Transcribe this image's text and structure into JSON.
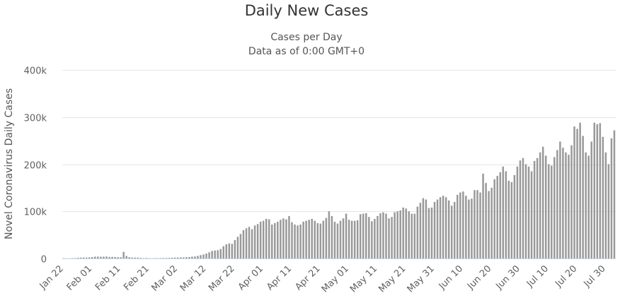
{
  "chart_data": {
    "type": "bar",
    "title": "Daily New Cases",
    "subtitle": [
      "Cases per Day",
      "Data as of 0:00 GMT+0"
    ],
    "xlabel": "",
    "ylabel": "Novel Coronavirus Daily Cases",
    "ylim": [
      0,
      400000
    ],
    "yticks": [
      0,
      100000,
      200000,
      300000,
      400000
    ],
    "ytick_labels": [
      "0",
      "100k",
      "200k",
      "300k",
      "400k"
    ],
    "grid": true,
    "legend": "none",
    "bar_color": "#999999",
    "x_start": "Jan 22",
    "xticks": [
      {
        "index": 0,
        "label": "Jan 22"
      },
      {
        "index": 10,
        "label": "Feb 01"
      },
      {
        "index": 20,
        "label": "Feb 11"
      },
      {
        "index": 30,
        "label": "Feb 21"
      },
      {
        "index": 40,
        "label": "Mar 02"
      },
      {
        "index": 50,
        "label": "Mar 12"
      },
      {
        "index": 60,
        "label": "Mar 22"
      },
      {
        "index": 70,
        "label": "Apr 01"
      },
      {
        "index": 80,
        "label": "Apr 11"
      },
      {
        "index": 90,
        "label": "Apr 21"
      },
      {
        "index": 100,
        "label": "May 01"
      },
      {
        "index": 110,
        "label": "May 11"
      },
      {
        "index": 120,
        "label": "May 21"
      },
      {
        "index": 130,
        "label": "May 31"
      },
      {
        "index": 140,
        "label": "Jun 10"
      },
      {
        "index": 150,
        "label": "Jun 20"
      },
      {
        "index": 160,
        "label": "Jun 30"
      },
      {
        "index": 170,
        "label": "Jul 10"
      },
      {
        "index": 180,
        "label": "Jul 20"
      },
      {
        "index": 190,
        "label": "Jul 30"
      }
    ],
    "values": [
      500,
      200,
      300,
      700,
      800,
      1500,
      1800,
      2000,
      1900,
      2400,
      2900,
      3800,
      3900,
      3700,
      3800,
      4100,
      3200,
      3300,
      3100,
      2700,
      2600,
      14000,
      5200,
      2600,
      2000,
      1800,
      1900,
      1200,
      600,
      1000,
      500,
      300,
      600,
      700,
      800,
      1000,
      900,
      1200,
      1500,
      1800,
      2000,
      2300,
      2300,
      2800,
      3000,
      3800,
      4200,
      5500,
      7000,
      8500,
      10500,
      13000,
      16000,
      17000,
      17500,
      20000,
      26000,
      30000,
      32000,
      31000,
      39000,
      46000,
      52000,
      60000,
      64000,
      67000,
      62000,
      70000,
      73000,
      78000,
      80000,
      84000,
      83000,
      72000,
      75000,
      78000,
      82000,
      85000,
      83000,
      90000,
      77000,
      72000,
      70000,
      72000,
      78000,
      80000,
      82000,
      84000,
      80000,
      75000,
      74000,
      80000,
      86000,
      100000,
      90000,
      78000,
      74000,
      80000,
      85000,
      95000,
      82000,
      80000,
      80000,
      81000,
      94000,
      95000,
      96000,
      88000,
      79000,
      84000,
      90000,
      96000,
      98000,
      95000,
      85000,
      88000,
      98000,
      100000,
      102000,
      108000,
      106000,
      100000,
      95000,
      95000,
      110000,
      118000,
      128000,
      125000,
      107000,
      108000,
      120000,
      125000,
      130000,
      133000,
      130000,
      123000,
      112000,
      120000,
      135000,
      140000,
      142000,
      133000,
      125000,
      127000,
      145000,
      145000,
      140000,
      180000,
      160000,
      143000,
      150000,
      168000,
      175000,
      183000,
      195000,
      185000,
      165000,
      162000,
      177000,
      195000,
      208000,
      213000,
      200000,
      195000,
      185000,
      207000,
      213000,
      225000,
      237000,
      218000,
      200000,
      197000,
      215000,
      230000,
      248000,
      235000,
      225000,
      220000,
      240000,
      280000,
      275000,
      288000,
      260000,
      225000,
      218000,
      248000,
      288000,
      285000,
      287000,
      258000,
      225000,
      200000,
      255000,
      272000
    ]
  }
}
